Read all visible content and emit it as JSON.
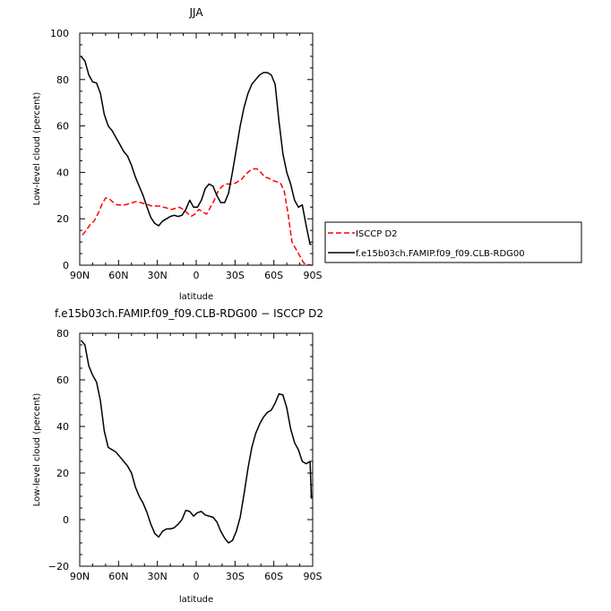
{
  "top_title": "JJA",
  "bottom_title": "f.e15b03ch.FAMIP.f09_f09.CLB-RDG00 − ISCCP D2",
  "legend": {
    "series1": "ISCCP D2",
    "series2": "f.e15b03ch.FAMIP.f09_f09.CLB-RDG00"
  },
  "colors": {
    "obs": "#ff0000",
    "model": "#000000",
    "axis": "#000000"
  },
  "chart_data": [
    {
      "type": "line",
      "title": "JJA",
      "xlabel": "latitude",
      "ylabel": "Low-level cloud (percent)",
      "xlim": [
        90,
        -90
      ],
      "ylim": [
        0,
        100
      ],
      "xticks": [
        90,
        60,
        30,
        0,
        -30,
        -60,
        -90
      ],
      "xtick_labels": [
        "90N",
        "60N",
        "30N",
        "0",
        "30S",
        "60S",
        "90S"
      ],
      "yticks": [
        0,
        20,
        40,
        60,
        80,
        100
      ],
      "ytick_labels": [
        "0",
        "20",
        "40",
        "60",
        "80",
        "100"
      ],
      "legend_placement": "right",
      "series": [
        {
          "name": "ISCCP D2",
          "style": "dashed",
          "x": [
            88,
            85,
            82,
            79,
            76,
            73,
            70,
            67,
            64,
            61,
            58,
            55,
            52,
            49,
            46,
            43,
            40,
            37,
            34,
            31,
            28,
            25,
            22,
            19,
            16,
            13,
            10,
            7,
            4,
            1,
            -2,
            -5,
            -8,
            -11,
            -14,
            -17,
            -20,
            -23,
            -26,
            -29,
            -32,
            -35,
            -38,
            -41,
            -44,
            -47,
            -50,
            -53,
            -56,
            -59,
            -62,
            -65,
            -68,
            -71,
            -74,
            -77,
            -80,
            -83,
            -86,
            -89
          ],
          "values": [
            13,
            15,
            17.5,
            19,
            22,
            26,
            29,
            28.5,
            27,
            26,
            26,
            26,
            26.5,
            27,
            27.5,
            27,
            26.5,
            26,
            25.5,
            25.5,
            25.5,
            25,
            24.5,
            24,
            24.5,
            25,
            24,
            22.5,
            21,
            22,
            24,
            23,
            22,
            25,
            28,
            32,
            34,
            35,
            35,
            35,
            36,
            37,
            39,
            40.5,
            41.5,
            41.5,
            40,
            38,
            37.5,
            36.5,
            36,
            35.5,
            32,
            22,
            10,
            7,
            4,
            1,
            0.2,
            0
          ]
        },
        {
          "name": "f.e15b03ch.FAMIP.f09_f09.CLB-RDG00",
          "style": "solid",
          "x": [
            89,
            86,
            83,
            80,
            77,
            74,
            71,
            68,
            65,
            62,
            59,
            56,
            53,
            50,
            47,
            44,
            41,
            38,
            35,
            32,
            29,
            26,
            23,
            20,
            17,
            14,
            11,
            8,
            5,
            2,
            -1,
            -4,
            -7,
            -10,
            -13,
            -16,
            -19,
            -22,
            -25,
            -28,
            -31,
            -34,
            -37,
            -40,
            -43,
            -46,
            -49,
            -52,
            -55,
            -58,
            -61,
            -64,
            -67,
            -70,
            -73,
            -76,
            -79,
            -82,
            -85,
            -88,
            -89
          ],
          "values": [
            90,
            88,
            82,
            79,
            78.5,
            74,
            65,
            60,
            58,
            55,
            52,
            49,
            47,
            43,
            38,
            34,
            30,
            25,
            20.5,
            18,
            17,
            19,
            20,
            21,
            21.5,
            21,
            21.5,
            24,
            28,
            25,
            25,
            28,
            33,
            35,
            34,
            30,
            27,
            27,
            31,
            40,
            50,
            60,
            68,
            74,
            78,
            80,
            82,
            83,
            83,
            82,
            78,
            62,
            48,
            40,
            35,
            28,
            25,
            26,
            17,
            9,
            9
          ]
        }
      ]
    },
    {
      "type": "line",
      "title": "f.e15b03ch.FAMIP.f09_f09.CLB-RDG00 − ISCCP D2",
      "xlabel": "latitude",
      "ylabel": "Low-level cloud (percent)",
      "xlim": [
        90,
        -90
      ],
      "ylim": [
        -20,
        80
      ],
      "xticks": [
        90,
        60,
        30,
        0,
        -30,
        -60,
        -90
      ],
      "xtick_labels": [
        "90N",
        "60N",
        "30N",
        "0",
        "30S",
        "60S",
        "90S"
      ],
      "yticks": [
        -20,
        0,
        20,
        40,
        60,
        80
      ],
      "ytick_labels": [
        "−20",
        "0",
        "20",
        "40",
        "60",
        "80"
      ],
      "series": [
        {
          "style": "solid",
          "x": [
            89,
            86,
            83,
            80,
            77,
            74,
            71,
            68,
            65,
            62,
            59,
            56,
            53,
            50,
            47,
            44,
            41,
            38,
            35,
            32,
            29,
            26,
            23,
            20,
            17,
            14,
            11,
            8,
            5,
            2,
            -1,
            -4,
            -7,
            -10,
            -13,
            -16,
            -19,
            -22,
            -25,
            -28,
            -31,
            -34,
            -37,
            -40,
            -43,
            -46,
            -49,
            -52,
            -55,
            -58,
            -61,
            -64,
            -67,
            -70,
            -73,
            -76,
            -79,
            -82,
            -85,
            -88,
            -89
          ],
          "values": [
            77,
            75,
            66,
            62,
            59,
            51,
            38,
            31,
            30,
            29,
            27,
            25,
            23,
            20,
            14,
            10,
            7,
            3,
            -2,
            -6,
            -7.5,
            -5,
            -4,
            -4,
            -3.5,
            -2,
            0,
            4,
            3.5,
            1.5,
            3,
            3.5,
            2,
            1.5,
            1,
            -1,
            -5,
            -8,
            -10,
            -9,
            -5,
            1,
            11,
            22,
            31,
            37,
            41,
            44,
            46,
            47,
            50,
            54,
            53.5,
            48,
            39,
            33,
            30,
            25,
            24,
            25,
            9
          ]
        }
      ]
    }
  ]
}
